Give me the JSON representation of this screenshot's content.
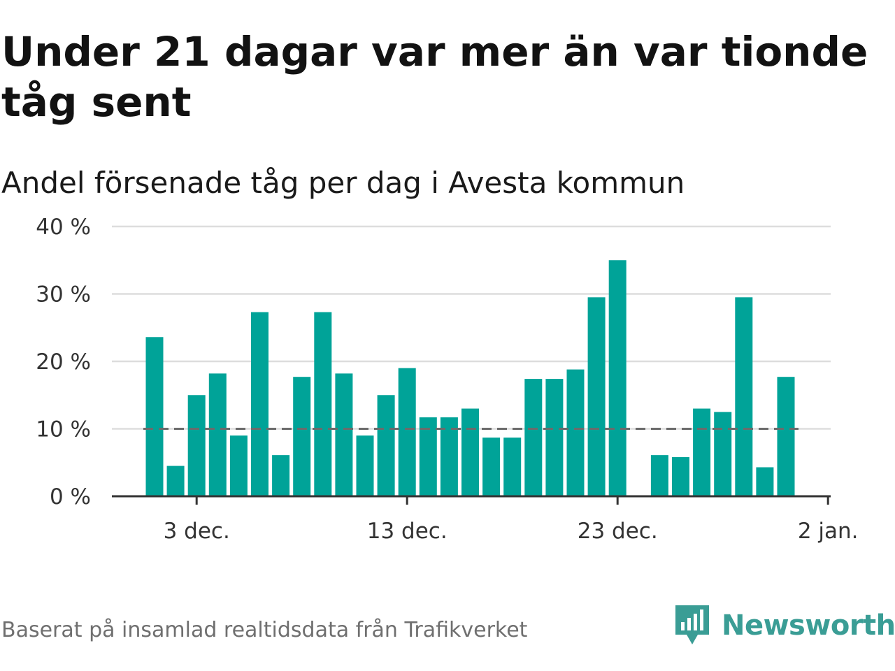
{
  "title": "Under 21 dagar var mer än var tionde tåg sent",
  "subtitle": "Andel försenade tåg per dag i Avesta kommun",
  "footer": {
    "source": "Baserat på insamlad realtidsdata från Trafikverket",
    "brand": "Newsworthy"
  },
  "chart_data": {
    "type": "bar",
    "x_dates": [
      "2020-12-01",
      "2020-12-02",
      "2020-12-03",
      "2020-12-04",
      "2020-12-05",
      "2020-12-06",
      "2020-12-07",
      "2020-12-08",
      "2020-12-09",
      "2020-12-10",
      "2020-12-11",
      "2020-12-12",
      "2020-12-13",
      "2020-12-14",
      "2020-12-15",
      "2020-12-16",
      "2020-12-17",
      "2020-12-18",
      "2020-12-19",
      "2020-12-20",
      "2020-12-21",
      "2020-12-22",
      "2020-12-23",
      "2020-12-24",
      "2020-12-25",
      "2020-12-26",
      "2020-12-27",
      "2020-12-28",
      "2020-12-29",
      "2020-12-30",
      "2020-12-31"
    ],
    "values": [
      23.6,
      4.5,
      15.0,
      18.2,
      9.0,
      27.3,
      6.1,
      17.7,
      27.3,
      18.2,
      9.0,
      15.0,
      19.0,
      11.7,
      11.7,
      13.0,
      8.7,
      8.7,
      17.4,
      17.4,
      18.8,
      29.5,
      35.0,
      0,
      6.1,
      5.8,
      13.0,
      12.5,
      29.5,
      4.3,
      17.7
    ],
    "reference_line": 10,
    "y_ticks": [
      "0 %",
      "10 %",
      "20 %",
      "30 %",
      "40 %"
    ],
    "x_tick_labels": [
      {
        "date": "2020-12-03",
        "label": "3 dec."
      },
      {
        "date": "2020-12-13",
        "label": "13 dec."
      },
      {
        "date": "2020-12-23",
        "label": "23 dec."
      },
      {
        "date": "2021-01-02",
        "label": "2 jan."
      }
    ],
    "ylim": [
      0,
      40
    ],
    "grid": true,
    "colors": {
      "bar": "#00a398",
      "reference": "#6b6b6b",
      "grid": "#dddddd",
      "axis": "#333333"
    }
  }
}
